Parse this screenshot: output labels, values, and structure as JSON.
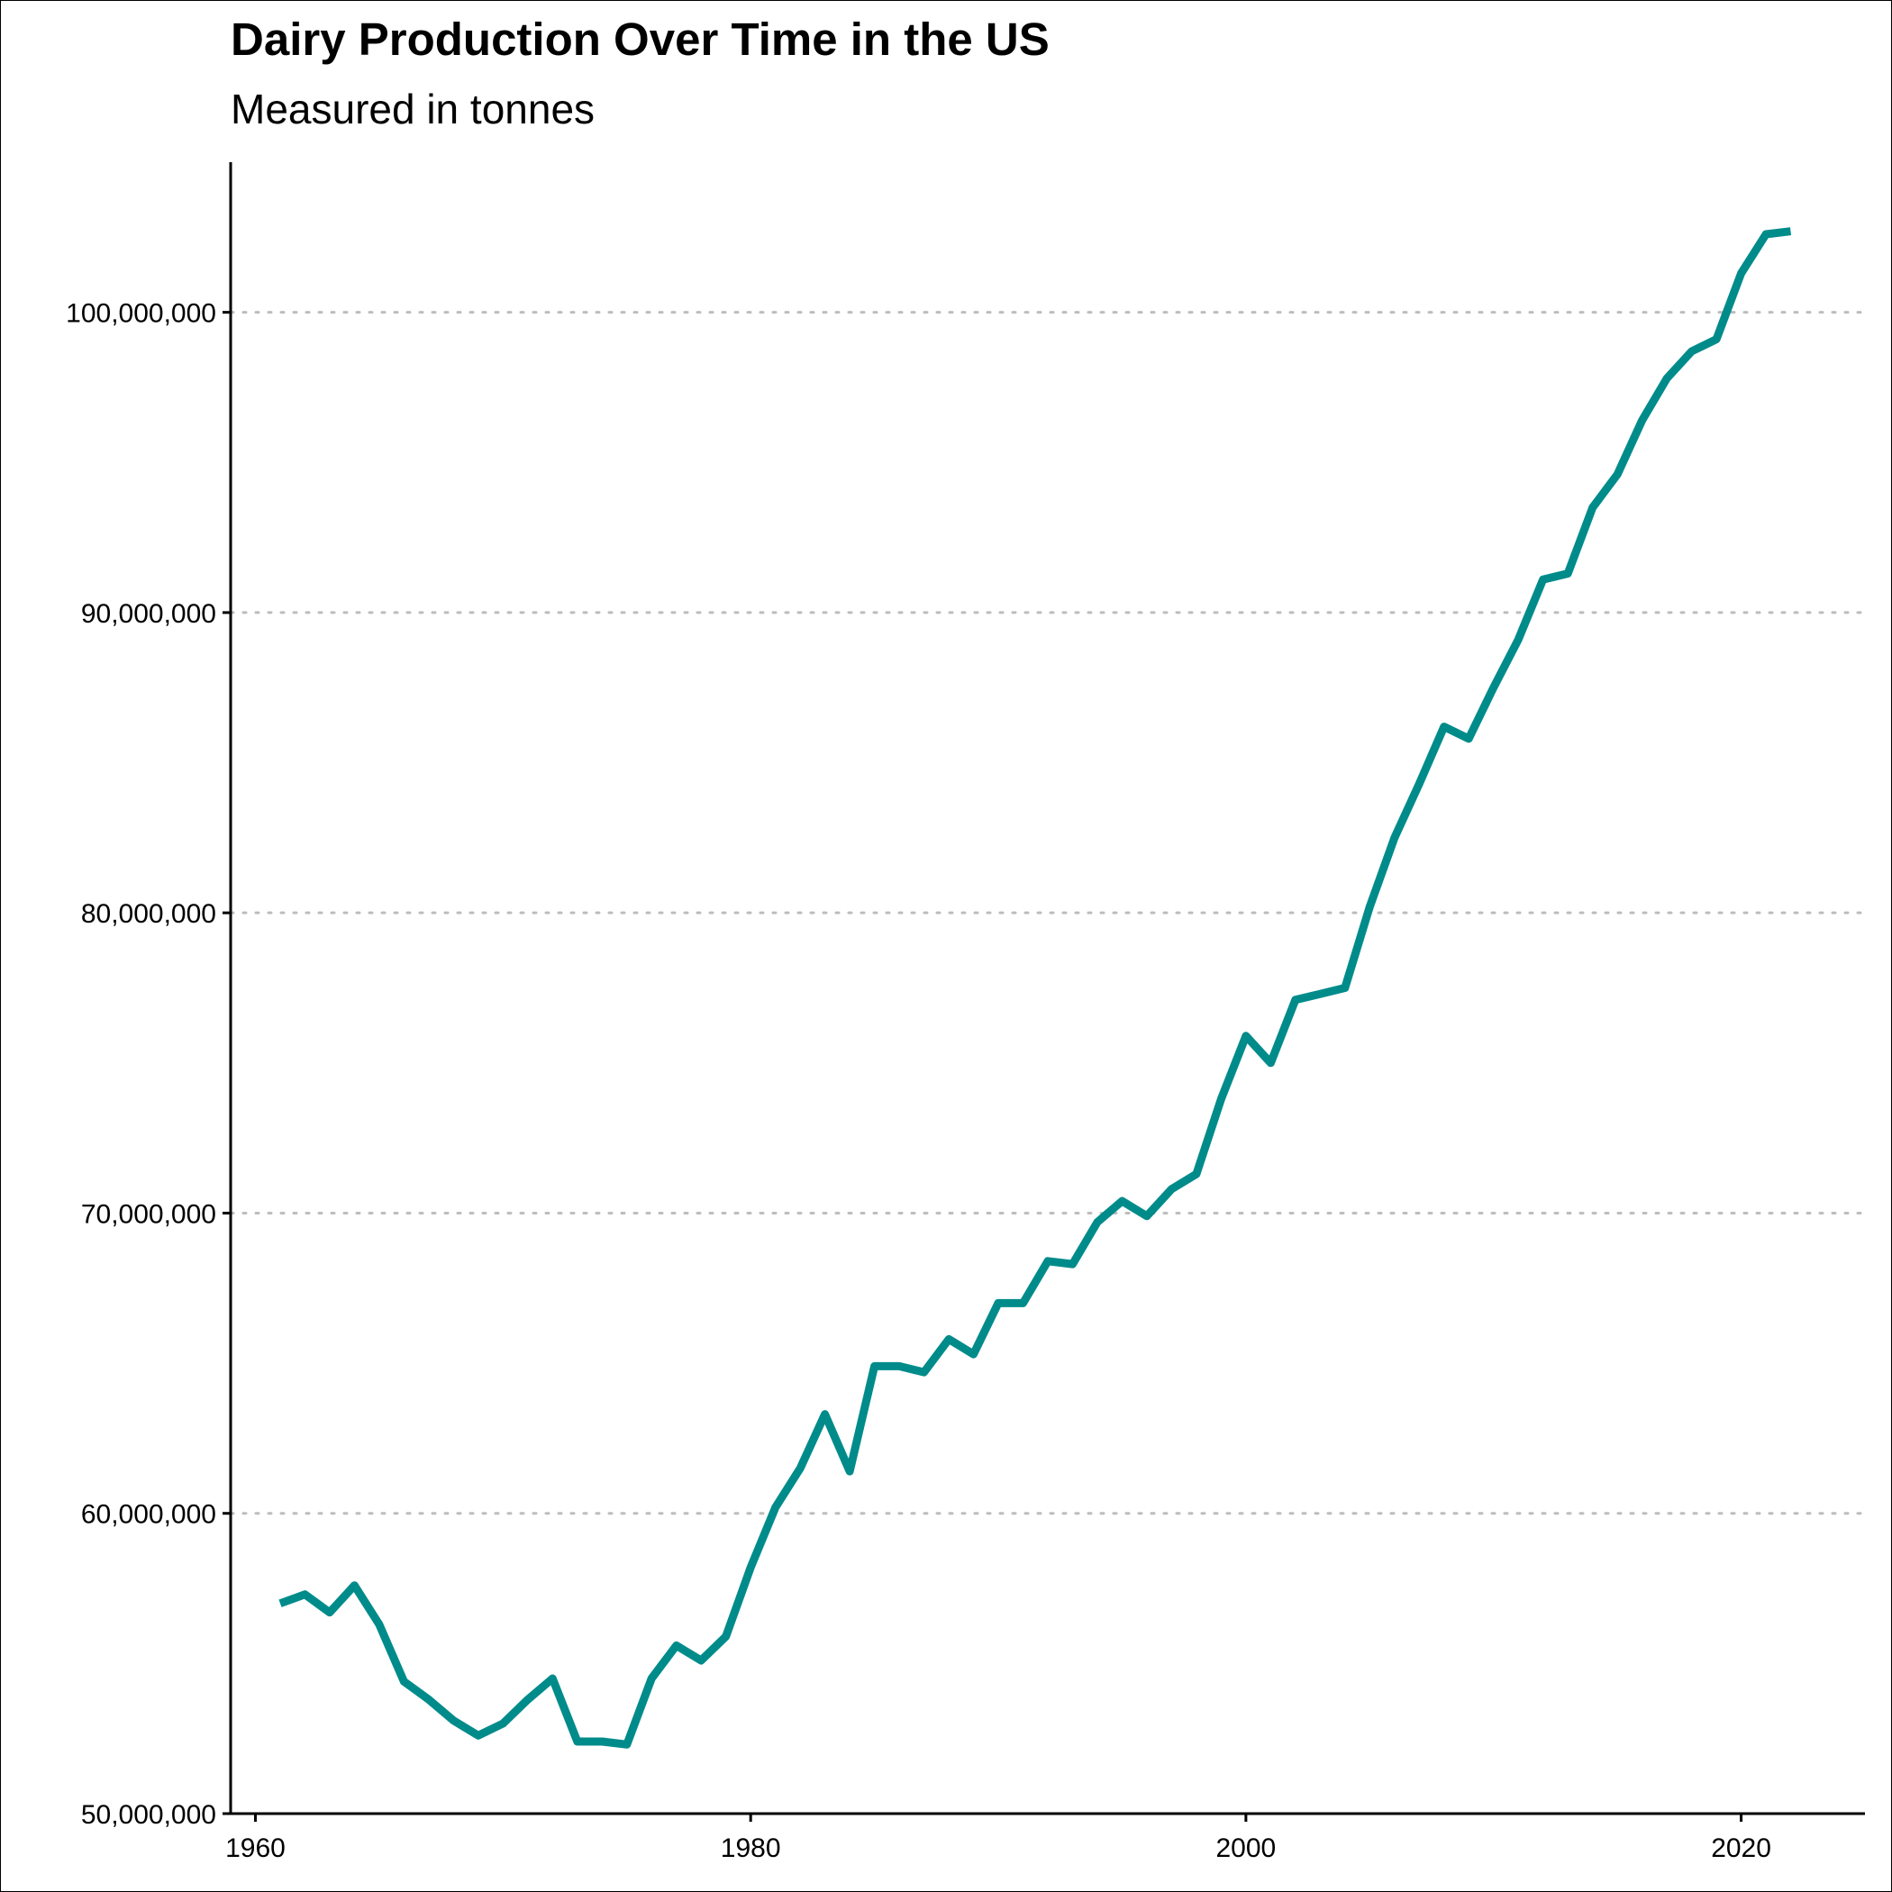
{
  "chart_data": {
    "type": "line",
    "title": "Dairy Production Over Time in the US",
    "subtitle": "Measured in tonnes",
    "xlabel": "",
    "ylabel": "",
    "xlim": [
      1959,
      2025
    ],
    "ylim": [
      50000000,
      105000000
    ],
    "x_ticks": [
      1960,
      1980,
      2000,
      2020
    ],
    "x_tick_labels": [
      "1960",
      "1980",
      "2000",
      "2020"
    ],
    "y_ticks": [
      50000000,
      60000000,
      70000000,
      80000000,
      90000000,
      100000000
    ],
    "y_tick_labels": [
      "50,000,000",
      "60,000,000",
      "70,000,000",
      "80,000,000",
      "90,000,000",
      "100,000,000"
    ],
    "grid": "horizontal dotted",
    "legend": "none",
    "line_color": "#008B8B",
    "series": [
      {
        "x": [
          1961,
          1962,
          1963,
          1964,
          1965,
          1966,
          1967,
          1968,
          1969,
          1970,
          1971,
          1972,
          1973,
          1974,
          1975,
          1976,
          1977,
          1978,
          1979,
          1980,
          1981,
          1982,
          1983,
          1984,
          1985,
          1986,
          1987,
          1988,
          1989,
          1990,
          1991,
          1992,
          1993,
          1994,
          1995,
          1996,
          1997,
          1998,
          1999,
          2000,
          2001,
          2002,
          2003,
          2004,
          2005,
          2006,
          2007,
          2008,
          2009,
          2010,
          2011,
          2012,
          2013,
          2014,
          2015,
          2016,
          2017,
          2018,
          2019,
          2020,
          2021,
          2022
        ],
        "values": [
          57000000,
          57300000,
          56700000,
          57600000,
          56300000,
          54400000,
          53800000,
          53100000,
          52600000,
          53000000,
          53800000,
          54500000,
          52400000,
          52400000,
          52300000,
          54500000,
          55600000,
          55100000,
          55900000,
          58200000,
          60200000,
          61500000,
          63300000,
          61400000,
          64900000,
          64900000,
          64700000,
          65800000,
          65300000,
          67000000,
          67000000,
          68400000,
          68300000,
          69700000,
          70400000,
          69900000,
          70800000,
          71300000,
          73800000,
          75900000,
          75000000,
          77100000,
          77300000,
          77500000,
          80200000,
          82500000,
          84300000,
          86200000,
          85800000,
          87500000,
          89100000,
          91100000,
          91300000,
          93500000,
          94600000,
          96400000,
          97800000,
          98700000,
          99100000,
          101300000,
          102600000,
          102700000
        ]
      }
    ]
  }
}
